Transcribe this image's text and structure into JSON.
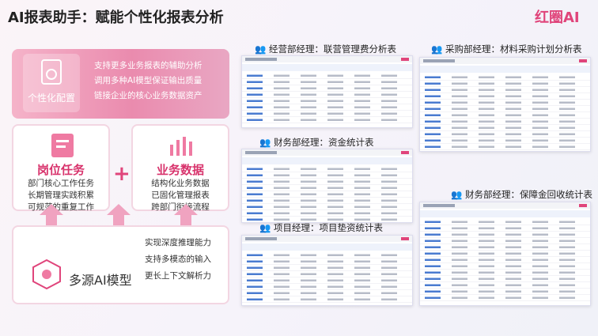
{
  "header": {
    "title": "AI报表助手：赋能个性化报表分析",
    "logo": "红圈AI"
  },
  "config_card": {
    "title": "个性化配置",
    "points": [
      "支持更多业务报表的辅助分析",
      "调用多种AI模型保证输出质量",
      "链接企业的核心业务数据资产"
    ]
  },
  "task_card": {
    "title": "岗位任务",
    "lines": [
      "部门核心工作任务",
      "长期管理实践积累",
      "可规范的重复工作"
    ]
  },
  "data_card": {
    "title": "业务数据",
    "lines": [
      "结构化业务数据",
      "已固化管理报表",
      "跨部门衔接流程"
    ]
  },
  "model_card": {
    "title": "多源AI模型",
    "lines": [
      "实现深度推理能力",
      "支持多模态的输入",
      "更长上下文解析力"
    ]
  },
  "reports": [
    {
      "caption": "经营部经理：联营管理费分析表"
    },
    {
      "caption": "采购部经理：材料采购计划分析表"
    },
    {
      "caption": "财务部经理：资金统计表"
    },
    {
      "caption": "财务部经理：保障金回收统计表"
    },
    {
      "caption": "项目经理：项目垫资统计表"
    }
  ]
}
